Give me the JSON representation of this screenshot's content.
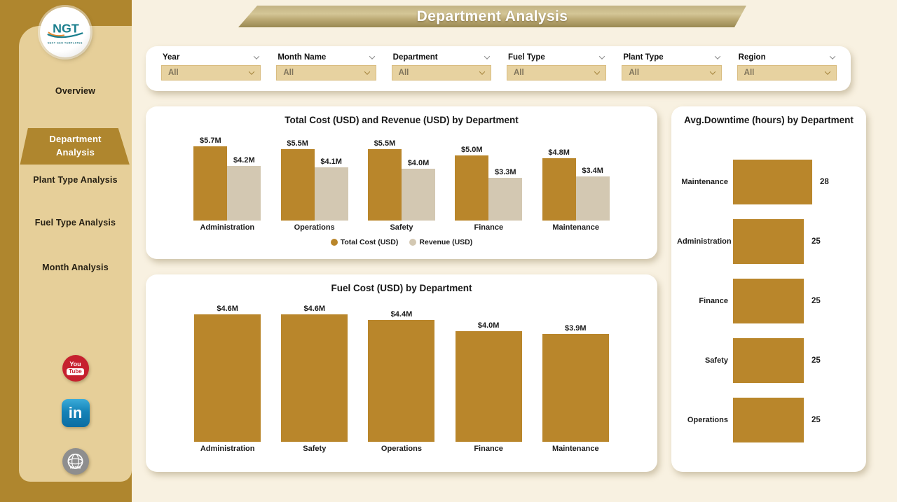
{
  "app": {
    "title": "Department Analysis"
  },
  "colors": {
    "gold": "#B9862B",
    "tan_bar": "#D3C8B2",
    "dark_gold": "#AF862E",
    "sidebar_tan": "#E6CF99",
    "cream_bg": "#F8F1E1",
    "accent_teal": "#1B7F8E",
    "youtube_red": "#C6202E",
    "linkedin_blue": "#0E74A8"
  },
  "sidebar": {
    "logo": {
      "text": "NGT",
      "subtext": "NEXT GEN TEMPLATES"
    },
    "items": [
      {
        "label": "Overview",
        "active": false
      },
      {
        "label": "Department Analysis",
        "active": true
      },
      {
        "label": "Plant Type Analysis",
        "active": false
      },
      {
        "label": "Fuel Type Analysis",
        "active": false
      },
      {
        "label": "Month Analysis",
        "active": false
      }
    ],
    "social_icons": {
      "youtube_text_top": "You",
      "youtube_text_bottom": "Tube",
      "linkedin_text": "in",
      "website_text": "www"
    }
  },
  "filters": [
    {
      "label": "Year",
      "value": "All"
    },
    {
      "label": "Month Name",
      "value": "All"
    },
    {
      "label": "Department",
      "value": "All"
    },
    {
      "label": "Fuel Type",
      "value": "All"
    },
    {
      "label": "Plant Type",
      "value": "All"
    },
    {
      "label": "Region",
      "value": "All"
    }
  ],
  "chart_data": [
    {
      "type": "bar",
      "title": "Total Cost (USD) and Revenue (USD) by Department",
      "categories": [
        "Administration",
        "Operations",
        "Safety",
        "Finance",
        "Maintenance"
      ],
      "series": [
        {
          "name": "Total Cost (USD)",
          "color": "#B9862B",
          "values": [
            5.7,
            5.5,
            5.5,
            5.0,
            4.8
          ],
          "labels": [
            "$5.7M",
            "$5.5M",
            "$5.5M",
            "$5.0M",
            "$4.8M"
          ]
        },
        {
          "name": "Revenue (USD)",
          "color": "#D3C8B2",
          "values": [
            4.2,
            4.1,
            4.0,
            3.3,
            3.4
          ],
          "labels": [
            "$4.2M",
            "$4.1M",
            "$4.0M",
            "$3.3M",
            "$3.4M"
          ]
        }
      ],
      "unit": "USD millions",
      "legend_position": "bottom",
      "grid": false
    },
    {
      "type": "bar",
      "title": "Fuel Cost (USD) by Department",
      "categories": [
        "Administration",
        "Safety",
        "Operations",
        "Finance",
        "Maintenance"
      ],
      "values": [
        4.6,
        4.6,
        4.4,
        4.0,
        3.9
      ],
      "labels": [
        "$4.6M",
        "$4.6M",
        "$4.4M",
        "$4.0M",
        "$3.9M"
      ],
      "unit": "USD millions",
      "grid": false
    },
    {
      "type": "bar-horizontal",
      "title": "Avg.Downtime (hours) by Department",
      "categories": [
        "Maintenance",
        "Administration",
        "Finance",
        "Safety",
        "Operations"
      ],
      "values": [
        28,
        25,
        25,
        25,
        25
      ],
      "unit": "hours",
      "grid": false
    }
  ]
}
